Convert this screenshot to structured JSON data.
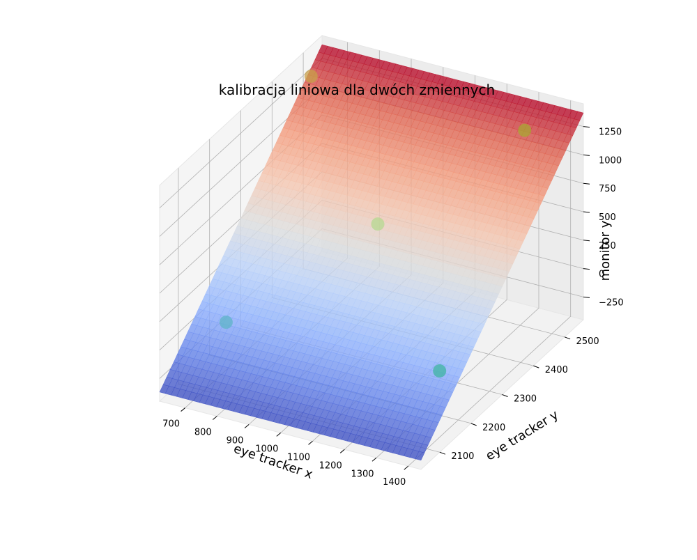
{
  "chart_data": {
    "type": "surface3d+scatter3d",
    "title": "kalibracja liniowa dla dwóch zmiennych",
    "xlabel": "eye tracker x",
    "ylabel": "eye tracker y",
    "zlabel": "monitor y",
    "xlim": [
      620,
      1440
    ],
    "ylim": [
      2040,
      2560
    ],
    "zlim": [
      -450,
      1450
    ],
    "x_ticks": [
      700,
      800,
      900,
      1000,
      1100,
      1200,
      1300,
      1400
    ],
    "y_ticks": [
      2100,
      2200,
      2300,
      2400,
      2500
    ],
    "z_ticks": [
      -250,
      0,
      250,
      500,
      750,
      1000,
      1250
    ],
    "x_tick_labels": [
      "700",
      "800",
      "900",
      "1000",
      "1100",
      "1200",
      "1300",
      "1400"
    ],
    "y_tick_labels": [
      "2100",
      "2200",
      "2300",
      "2400",
      "2500"
    ],
    "z_tick_labels": [
      "−250",
      "0",
      "250",
      "500",
      "750",
      "1000",
      "1250"
    ],
    "surface": {
      "colormap": "coolwarm",
      "corner_values": {
        "x_min_y_min": -370,
        "x_min_y_max": 1370,
        "x_max_y_min": -370,
        "x_max_y_max": 1370
      }
    },
    "points": [
      {
        "x": 620,
        "y": 2525,
        "z": 1180,
        "color": "#c8a04a"
      },
      {
        "x": 1290,
        "y": 2525,
        "z": 1195,
        "color": "#a8a632"
      },
      {
        "x": 1030,
        "y": 2320,
        "z": 700,
        "color": "#b5d890"
      },
      {
        "x": 760,
        "y": 2110,
        "z": 170,
        "color": "#5fb4c8"
      },
      {
        "x": 1420,
        "y": 2120,
        "z": 200,
        "color": "#3fb4a2"
      }
    ],
    "grid": true
  }
}
